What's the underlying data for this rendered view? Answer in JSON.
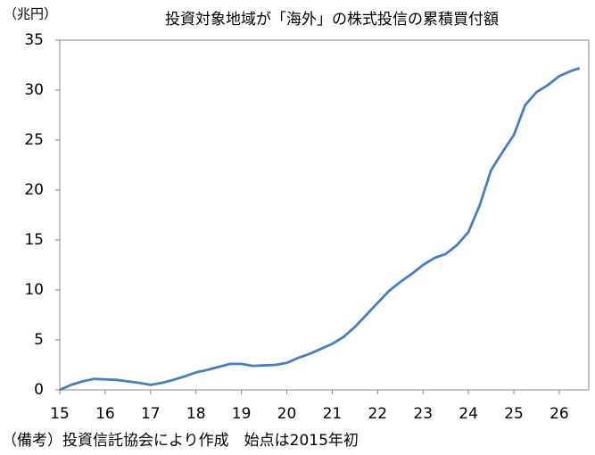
{
  "chart_data": {
    "type": "line",
    "title": "投資対象地域が「海外」の株式投信の累積買付額",
    "y_unit_label": "（兆円）",
    "note": "（備考）投資信託協会により作成　始点は2015年初",
    "series": [
      {
        "color": "#4a7ebb",
        "x": [
          15,
          15.25,
          15.5,
          15.75,
          16,
          16.25,
          16.5,
          16.75,
          17,
          17.25,
          17.5,
          17.75,
          18,
          18.25,
          18.5,
          18.75,
          19,
          19.25,
          19.5,
          19.75,
          20,
          20.25,
          20.5,
          20.75,
          21,
          21.25,
          21.5,
          21.75,
          22,
          22.25,
          22.5,
          22.75,
          23,
          23.25,
          23.5,
          23.75,
          24,
          24.25,
          24.5,
          24.75,
          25,
          25.25,
          25.5,
          25.75,
          26,
          26.25,
          26.45
        ],
        "values": [
          0,
          0.5,
          0.85,
          1.1,
          1.05,
          1.0,
          0.85,
          0.7,
          0.5,
          0.7,
          1.0,
          1.35,
          1.75,
          2.0,
          2.3,
          2.6,
          2.6,
          2.4,
          2.45,
          2.5,
          2.7,
          3.2,
          3.6,
          4.1,
          4.6,
          5.3,
          6.3,
          7.5,
          8.7,
          9.9,
          10.8,
          11.6,
          12.5,
          13.2,
          13.6,
          14.5,
          15.8,
          18.5,
          22.0,
          23.8,
          25.5,
          28.5,
          29.8,
          30.5,
          31.4,
          31.9,
          32.2
        ]
      }
    ],
    "xlim": [
      15,
      26.65
    ],
    "xticks": [
      15,
      16,
      17,
      18,
      19,
      20,
      21,
      22,
      23,
      24,
      25,
      26
    ],
    "ylim": [
      0,
      35
    ],
    "yticks": [
      0,
      5,
      10,
      15,
      20,
      25,
      30,
      35
    ]
  }
}
